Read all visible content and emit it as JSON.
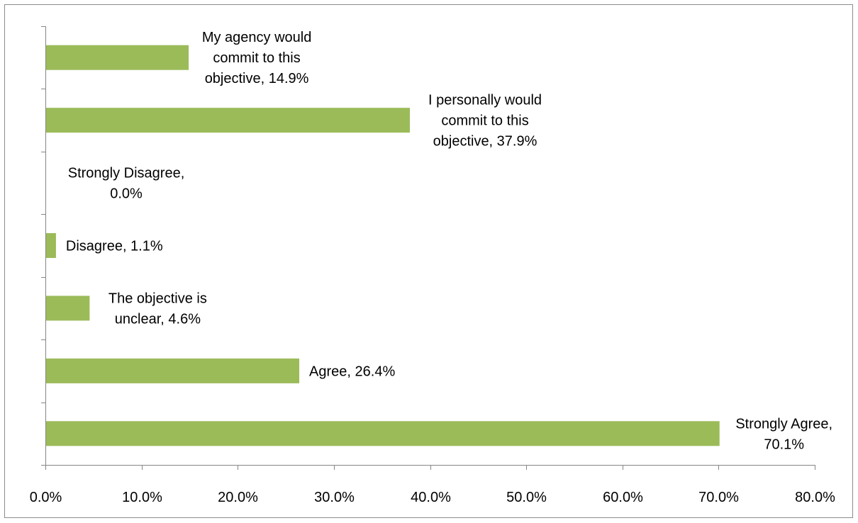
{
  "chart_data": {
    "type": "bar",
    "orientation": "horizontal",
    "title": "",
    "xlabel": "",
    "ylabel": "",
    "xlim": [
      0,
      0.8
    ],
    "x_tick_labels": [
      "0.0%",
      "10.0%",
      "20.0%",
      "30.0%",
      "40.0%",
      "50.0%",
      "60.0%",
      "70.0%",
      "80.0%"
    ],
    "grid": false,
    "legend": "none",
    "bar_color": "#9bbb59",
    "axis_color": "#868686",
    "categories": [
      "Strongly Agree",
      "Agree",
      "The objective is unclear",
      "Disagree",
      "Strongly Disagree",
      "I personally would commit to this objective",
      "My agency would commit to this objective"
    ],
    "values": [
      0.701,
      0.264,
      0.046,
      0.011,
      0.0,
      0.379,
      0.149
    ],
    "data_labels": [
      [
        "Strongly Agree,",
        "70.1%"
      ],
      [
        "Agree, 26.4%"
      ],
      [
        "The objective is",
        "unclear, 4.6%"
      ],
      [
        "Disagree, 1.1%"
      ],
      [
        "Strongly Disagree,",
        "0.0%"
      ],
      [
        "I personally would",
        "commit to this",
        "objective, 37.9%"
      ],
      [
        "My agency would",
        "commit to this",
        "objective, 14.9%"
      ]
    ]
  }
}
